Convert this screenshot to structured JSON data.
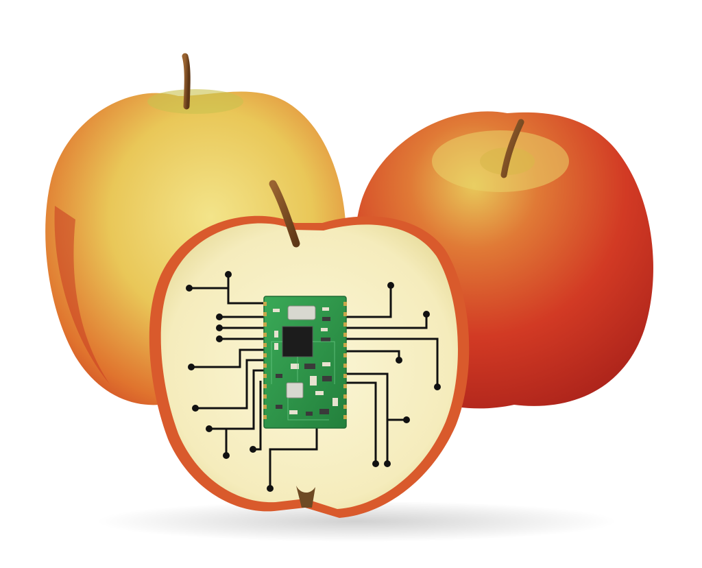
{
  "scene": {
    "subject": "apples-with-circuit-chip",
    "background_color": "#ffffff"
  },
  "colors": {
    "apple_red": "#d23a24",
    "apple_red_dark": "#a8211a",
    "apple_yellow": "#e9cf57",
    "apple_yellow_light": "#f3e48a",
    "flesh": "#f7f0c4",
    "flesh_shadow": "#e6dc9f",
    "stem": "#7a4a22",
    "pcb_green": "#2f9a4a",
    "pcb_dark": "#1f6b34",
    "chip_black": "#1c1c1c",
    "trace_black": "#111111",
    "gold": "#c9a64a"
  },
  "icons": {
    "left_apple": "whole-apple-icon",
    "right_apple": "whole-apple-icon",
    "half_apple": "halved-apple-icon",
    "chip": "circuit-board-icon"
  }
}
